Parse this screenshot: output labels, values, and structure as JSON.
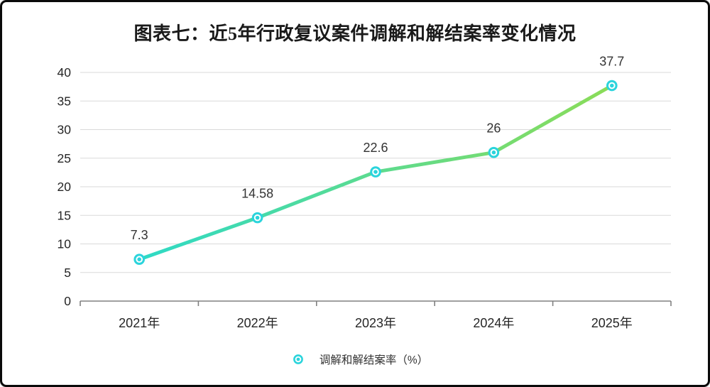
{
  "chart_data": {
    "type": "line",
    "title": "图表七：近5年行政复议案件调解和解结案率变化情况",
    "categories": [
      "2021年",
      "2022年",
      "2023年",
      "2024年",
      "2025年"
    ],
    "series": [
      {
        "name": "调解和解结案率（%）",
        "values": [
          7.3,
          14.58,
          22.6,
          26,
          37.7
        ]
      }
    ],
    "xlabel": "",
    "ylabel": "",
    "ylim": [
      0,
      40
    ],
    "yticks": [
      0,
      5,
      10,
      15,
      20,
      25,
      30,
      35,
      40
    ],
    "grid": true,
    "legend_position": "bottom",
    "colors": {
      "line_gradient_start": "#2EDAC6",
      "line_gradient_end": "#8BDC58",
      "marker": "#2BD4DC",
      "marker_fill": "#ffffff",
      "grid_line": "#d9d9d9",
      "axis_line": "#808080",
      "tick_label": "#262626",
      "data_label": "#333333"
    }
  }
}
